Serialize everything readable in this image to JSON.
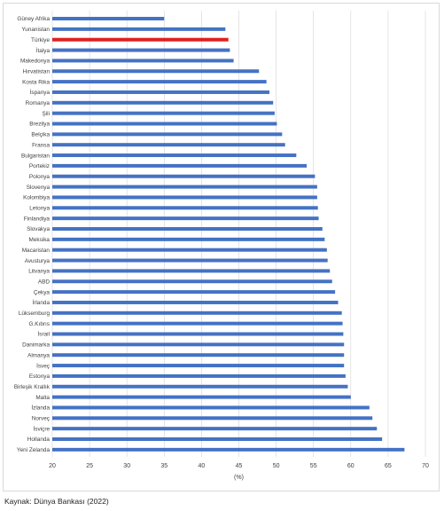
{
  "chart_data": {
    "type": "bar",
    "orientation": "horizontal",
    "categories": [
      "Güney Afrika",
      "Yunanistan",
      "Türkiye",
      "İtalya",
      "Makedonya",
      "Hırvatistan",
      "Kosta Rika",
      "İspanya",
      "Romanya",
      "Şili",
      "Brezilya",
      "Belçika",
      "Fransa",
      "Bulgaristan",
      "Portekiz",
      "Polonya",
      "Slovenya",
      "Kolombiya",
      "Letonya",
      "Finlandiya",
      "Slovakya",
      "Meksika",
      "Macaristan",
      "Avusturya",
      "Litvanya",
      "ABD",
      "Çekya",
      "İrlanda",
      "Lüksemburg",
      "G.Kıbrıs",
      "İsrail",
      "Danimarka",
      "Almanya",
      "İsveç",
      "Estonya",
      "Birleşik Krallık",
      "Malta",
      "İzlanda",
      "Norveç",
      "İsviçre",
      "Hollanda",
      "Yeni Zelanda"
    ],
    "values": [
      35.0,
      43.2,
      43.6,
      43.8,
      44.3,
      47.7,
      48.7,
      49.1,
      49.6,
      49.8,
      50.1,
      50.8,
      51.2,
      52.7,
      54.1,
      55.2,
      55.5,
      55.5,
      55.6,
      55.7,
      56.2,
      56.5,
      56.8,
      56.9,
      57.2,
      57.5,
      57.9,
      58.3,
      58.8,
      58.9,
      59.0,
      59.1,
      59.1,
      59.1,
      59.3,
      59.6,
      60.0,
      62.5,
      62.9,
      63.5,
      64.2,
      67.2
    ],
    "highlight_category": "Türkiye",
    "bar_color": "#4472c4",
    "highlight_color": "#e02020",
    "xlim": [
      20,
      70
    ],
    "xticks": [
      20,
      25,
      30,
      35,
      40,
      45,
      50,
      55,
      60,
      65,
      70
    ],
    "xlabel": "(%)",
    "grid": true
  },
  "source_note": "Kaynak: Dünya Bankası (2022)"
}
